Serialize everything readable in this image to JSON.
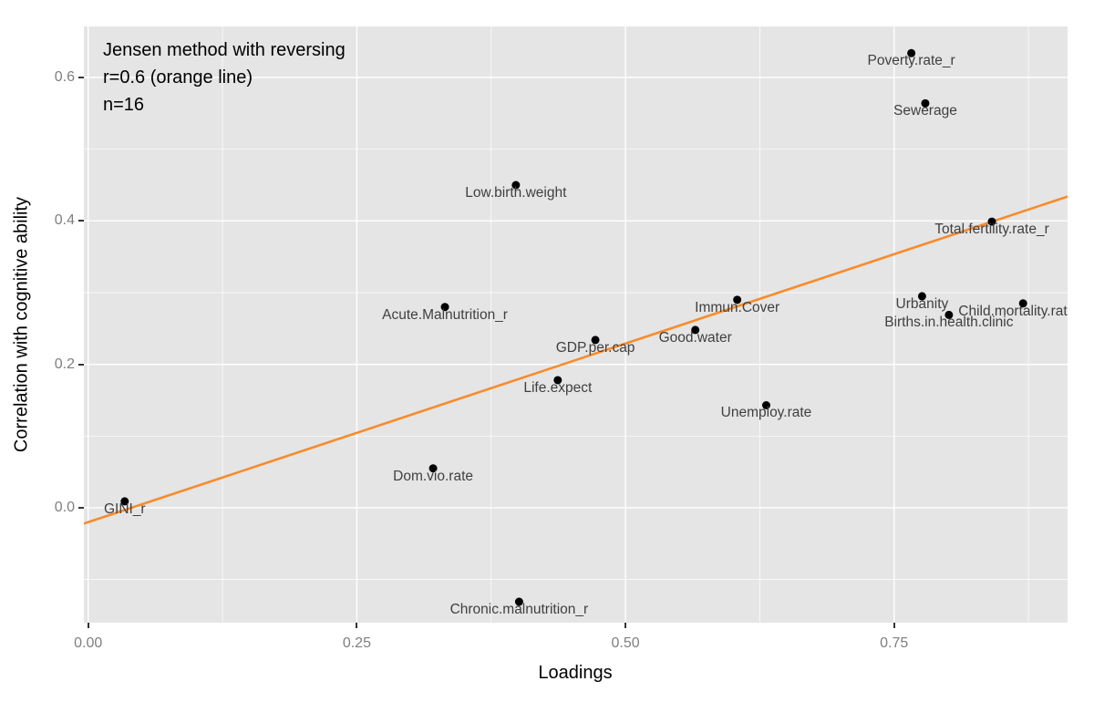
{
  "chart_data": {
    "type": "scatter",
    "xlabel": "Loadings",
    "ylabel": "Correlation with cognitive ability",
    "xlim": [
      -0.004,
      0.9114
    ],
    "ylim": [
      -0.1602,
      0.6712
    ],
    "x_ticks": [
      0.0,
      0.25,
      0.5,
      0.75
    ],
    "x_tick_labels": [
      "0.00",
      "0.25",
      "0.50",
      "0.75"
    ],
    "y_ticks": [
      0.0,
      0.2,
      0.4,
      0.6
    ],
    "y_tick_labels": [
      "0.0",
      "0.2",
      "0.4",
      "0.6"
    ],
    "grid": true,
    "legend": false,
    "annotation_lines": [
      "Jensen method with reversing",
      "r=0.6 (orange line)",
      "n=16"
    ],
    "n": 16,
    "r": 0.6,
    "points": [
      {
        "label": "GINI_r",
        "x": 0.034,
        "y": 0.009
      },
      {
        "label": "Dom.vio.rate",
        "x": 0.321,
        "y": 0.055
      },
      {
        "label": "Acute.Malnutrition_r",
        "x": 0.332,
        "y": 0.28
      },
      {
        "label": "Low.birth.weight",
        "x": 0.398,
        "y": 0.45
      },
      {
        "label": "Chronic.malnutrition_r",
        "x": 0.401,
        "y": -0.131
      },
      {
        "label": "Life.expect",
        "x": 0.437,
        "y": 0.178
      },
      {
        "label": "GDP.per.cap",
        "x": 0.472,
        "y": 0.234
      },
      {
        "label": "Good.water",
        "x": 0.565,
        "y": 0.248
      },
      {
        "label": "Immun.Cover",
        "x": 0.604,
        "y": 0.29
      },
      {
        "label": "Unemploy.rate",
        "x": 0.631,
        "y": 0.143
      },
      {
        "label": "Poverty.rate_r",
        "x": 0.766,
        "y": 0.634
      },
      {
        "label": "Urbanity",
        "x": 0.776,
        "y": 0.295
      },
      {
        "label": "Sewerage",
        "x": 0.779,
        "y": 0.564
      },
      {
        "label": "Births.in.health.clinic",
        "x": 0.801,
        "y": 0.269
      },
      {
        "label": "Total.fertility.rate_r",
        "x": 0.841,
        "y": 0.399
      },
      {
        "label": "Child.mortality.rate_r",
        "x": 0.87,
        "y": 0.285
      }
    ],
    "trend_line": {
      "x1": -0.004,
      "y1": -0.022,
      "x2": 0.9114,
      "y2": 0.434
    },
    "colors": {
      "panel_bg": "#E5E5E5",
      "grid": "#FFFFFF",
      "point": "#000000",
      "trend": "#F98B2B",
      "tick_label": "#7F7F7F",
      "tick_mark": "#333333",
      "point_label": "#404040",
      "axis_title": "#000000"
    }
  }
}
